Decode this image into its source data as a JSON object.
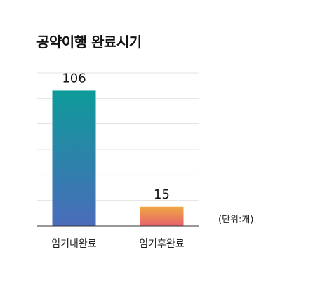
{
  "chart_data": {
    "type": "bar",
    "title": "공약이행 완료시기",
    "unit": "(단위:개)",
    "categories": [
      "임기내완료",
      "임기후완료"
    ],
    "values": [
      106,
      15
    ],
    "ylim": [
      0,
      120
    ],
    "grid": true,
    "legend": "none",
    "bar_gradients": [
      [
        "#0e9a9a",
        "#4a6cbb"
      ],
      [
        "#f0a843",
        "#e5616a"
      ]
    ],
    "axis_color": "#333333",
    "grid_color": "#e3e3e3"
  }
}
